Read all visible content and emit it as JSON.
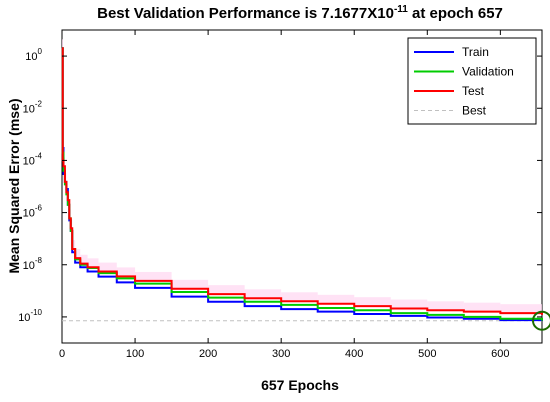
{
  "chart_data": {
    "type": "line",
    "title": {
      "prefix": "Best Validation Performance is 7.1677X10",
      "exponent": "-11",
      "suffix": " at epoch 657"
    },
    "xlabel": "657 Epochs",
    "ylabel": "Mean Squared Error  (mse)",
    "xscale": "linear",
    "yscale": "log",
    "xlim": [
      0,
      657
    ],
    "ylim": [
      1e-11,
      10
    ],
    "x_ticks": [
      0,
      100,
      200,
      300,
      400,
      500,
      600
    ],
    "x_tick_labels": [
      "0",
      "100",
      "200",
      "300",
      "400",
      "500",
      "600"
    ],
    "y_ticks": [
      1e-10,
      1e-08,
      1e-06,
      0.0001,
      0.01,
      1
    ],
    "y_tick_labels": [
      {
        "base": "10",
        "exp": "-10"
      },
      {
        "base": "10",
        "exp": "-8"
      },
      {
        "base": "10",
        "exp": "-6"
      },
      {
        "base": "10",
        "exp": "-4"
      },
      {
        "base": "10",
        "exp": "-2"
      },
      {
        "base": "10",
        "exp": "0"
      }
    ],
    "grid": false,
    "legend_position": "top-right",
    "series": [
      {
        "name": "Train",
        "color": "#0000ff",
        "style": "solid",
        "x": [
          0,
          1,
          2,
          4,
          6,
          8,
          10,
          12,
          14,
          18,
          25,
          35,
          50,
          75,
          100,
          150,
          200,
          250,
          300,
          350,
          400,
          450,
          500,
          550,
          600,
          657
        ],
        "y": [
          2,
          0.0003,
          3e-05,
          1.5e-05,
          8e-06,
          2e-06,
          5e-07,
          2e-07,
          3e-08,
          1.2e-08,
          8e-09,
          5.5e-09,
          3.5e-09,
          2.1e-09,
          1.3e-09,
          6e-10,
          3.8e-10,
          2.6e-10,
          2e-10,
          1.6e-10,
          1.3e-10,
          1.1e-10,
          9.5e-11,
          8.5e-11,
          7.5e-11,
          7e-11
        ]
      },
      {
        "name": "Validation",
        "color": "#00cc00",
        "style": "solid",
        "x": [
          0,
          1,
          2,
          4,
          6,
          8,
          10,
          12,
          14,
          18,
          25,
          35,
          50,
          75,
          100,
          150,
          200,
          250,
          300,
          350,
          400,
          450,
          500,
          550,
          600,
          657
        ],
        "y": [
          2,
          0.0002,
          4e-05,
          1.2e-05,
          5e-06,
          2e-06,
          6e-07,
          2e-07,
          4e-08,
          1.6e-08,
          1e-08,
          7.5e-09,
          4.8e-09,
          3e-09,
          1.9e-09,
          9e-10,
          5.5e-10,
          3.8e-10,
          2.9e-10,
          2.2e-10,
          1.8e-10,
          1.4e-10,
          1.2e-10,
          1e-10,
          8.5e-11,
          7.2e-11
        ]
      },
      {
        "name": "Test",
        "color": "#ff0000",
        "style": "solid",
        "x": [
          0,
          1,
          2,
          4,
          6,
          8,
          10,
          12,
          14,
          18,
          25,
          35,
          50,
          75,
          100,
          150,
          200,
          250,
          300,
          350,
          400,
          450,
          500,
          550,
          600,
          657
        ],
        "y": [
          2,
          0.0001,
          6e-05,
          1.5e-05,
          6e-06,
          3e-06,
          6e-07,
          2.5e-07,
          4e-08,
          1.8e-08,
          1.1e-08,
          8e-09,
          5.5e-09,
          3.6e-09,
          2.4e-09,
          1.2e-09,
          7.5e-10,
          5.2e-10,
          4e-10,
          3.2e-10,
          2.6e-10,
          2.1e-10,
          1.8e-10,
          1.6e-10,
          1.4e-10,
          1.2e-10
        ]
      }
    ],
    "best": {
      "name": "Best",
      "color": "#c0c0c0",
      "style": "dashed",
      "value": 7.1677e-11,
      "epoch": 657,
      "marker_color": "#1a6b00"
    }
  }
}
